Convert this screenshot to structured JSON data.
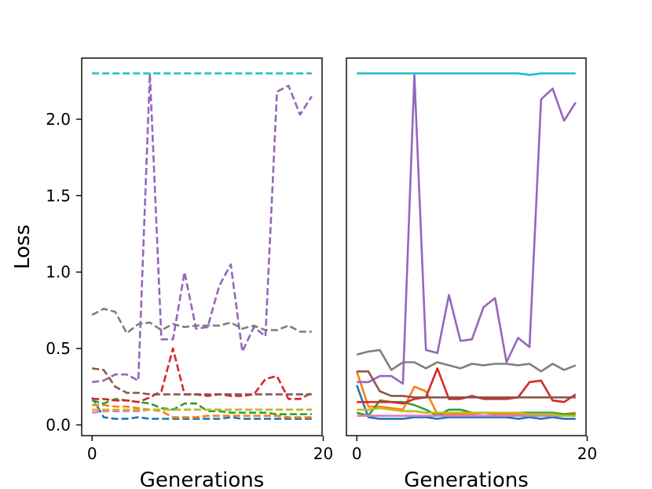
{
  "chart_data": [
    {
      "type": "line",
      "line_style": "dashed",
      "xlabel": "Generations",
      "ylabel": "Loss",
      "xlim": [
        -0.9,
        19.9
      ],
      "ylim": [
        -0.07,
        2.4
      ],
      "xticks": [
        0,
        20
      ],
      "yticks": [
        0.0,
        0.5,
        1.0,
        1.5,
        2.0
      ],
      "x": [
        0,
        1,
        2,
        3,
        4,
        5,
        6,
        7,
        8,
        9,
        10,
        11,
        12,
        13,
        14,
        15,
        16,
        17,
        18,
        19
      ],
      "series": [
        {
          "name": "blue",
          "color": "#1f77b4",
          "values": [
            0.18,
            0.05,
            0.04,
            0.04,
            0.05,
            0.04,
            0.04,
            0.04,
            0.04,
            0.04,
            0.04,
            0.04,
            0.05,
            0.04,
            0.04,
            0.04,
            0.04,
            0.04,
            0.04,
            0.04
          ]
        },
        {
          "name": "orange",
          "color": "#ff7f0e",
          "values": [
            0.13,
            0.13,
            0.12,
            0.12,
            0.11,
            0.1,
            0.09,
            0.05,
            0.05,
            0.05,
            0.06,
            0.06,
            0.06,
            0.06,
            0.06,
            0.06,
            0.06,
            0.05,
            0.05,
            0.05
          ]
        },
        {
          "name": "green",
          "color": "#2ca02c",
          "values": [
            0.16,
            0.14,
            0.17,
            0.16,
            0.15,
            0.14,
            0.11,
            0.1,
            0.14,
            0.14,
            0.09,
            0.09,
            0.08,
            0.08,
            0.08,
            0.08,
            0.07,
            0.07,
            0.07,
            0.07
          ]
        },
        {
          "name": "red",
          "color": "#d62728",
          "values": [
            0.17,
            0.17,
            0.16,
            0.16,
            0.15,
            0.18,
            0.22,
            0.5,
            0.2,
            0.2,
            0.19,
            0.2,
            0.19,
            0.19,
            0.2,
            0.3,
            0.32,
            0.17,
            0.17,
            0.21
          ]
        },
        {
          "name": "purple",
          "color": "#9467bd",
          "values": [
            0.28,
            0.29,
            0.33,
            0.33,
            0.29,
            2.3,
            0.56,
            0.56,
            1.0,
            0.63,
            0.64,
            0.91,
            1.05,
            0.48,
            0.64,
            0.58,
            2.18,
            2.22,
            2.03,
            2.15
          ]
        },
        {
          "name": "brown",
          "color": "#8c564b",
          "values": [
            0.37,
            0.36,
            0.25,
            0.21,
            0.21,
            0.2,
            0.2,
            0.2,
            0.2,
            0.2,
            0.2,
            0.2,
            0.2,
            0.2,
            0.2,
            0.2,
            0.2,
            0.2,
            0.2,
            0.2
          ]
        },
        {
          "name": "pink",
          "color": "#e377c2",
          "values": [
            0.08,
            0.09,
            0.09,
            0.09,
            0.09,
            0.1,
            0.1,
            0.1,
            0.1,
            0.1,
            0.1,
            0.1,
            0.1,
            0.1,
            0.1,
            0.1,
            0.1,
            0.1,
            0.1,
            0.1
          ]
        },
        {
          "name": "gray",
          "color": "#7f7f7f",
          "values": [
            0.72,
            0.76,
            0.74,
            0.6,
            0.66,
            0.67,
            0.62,
            0.66,
            0.64,
            0.65,
            0.65,
            0.65,
            0.67,
            0.63,
            0.65,
            0.62,
            0.62,
            0.65,
            0.61,
            0.61
          ]
        },
        {
          "name": "olive",
          "color": "#bcbd22",
          "values": [
            0.1,
            0.1,
            0.1,
            0.1,
            0.1,
            0.1,
            0.1,
            0.1,
            0.1,
            0.1,
            0.1,
            0.1,
            0.1,
            0.1,
            0.1,
            0.1,
            0.1,
            0.1,
            0.1,
            0.1
          ]
        },
        {
          "name": "cyan",
          "color": "#17becf",
          "values": [
            2.3,
            2.3,
            2.3,
            2.3,
            2.3,
            2.3,
            2.3,
            2.3,
            2.3,
            2.3,
            2.3,
            2.3,
            2.3,
            2.3,
            2.3,
            2.3,
            2.3,
            2.3,
            2.3,
            2.3
          ]
        }
      ]
    },
    {
      "type": "line",
      "line_style": "solid",
      "xlabel": "Generations",
      "ylabel": "",
      "xlim": [
        -0.9,
        19.9
      ],
      "ylim": [
        -0.07,
        2.4
      ],
      "xticks": [
        0,
        20
      ],
      "yticks": [],
      "x": [
        0,
        1,
        2,
        3,
        4,
        5,
        6,
        7,
        8,
        9,
        10,
        11,
        12,
        13,
        14,
        15,
        16,
        17,
        18,
        19
      ],
      "series": [
        {
          "name": "blue",
          "color": "#1f77b4",
          "values": [
            0.26,
            0.05,
            0.04,
            0.04,
            0.04,
            0.05,
            0.05,
            0.04,
            0.05,
            0.05,
            0.05,
            0.05,
            0.05,
            0.05,
            0.04,
            0.05,
            0.04,
            0.05,
            0.04,
            0.04
          ]
        },
        {
          "name": "orange",
          "color": "#ff7f0e",
          "values": [
            0.35,
            0.12,
            0.12,
            0.11,
            0.1,
            0.25,
            0.22,
            0.07,
            0.07,
            0.07,
            0.07,
            0.08,
            0.07,
            0.07,
            0.07,
            0.07,
            0.07,
            0.07,
            0.07,
            0.08
          ]
        },
        {
          "name": "green",
          "color": "#2ca02c",
          "values": [
            0.08,
            0.06,
            0.16,
            0.15,
            0.15,
            0.13,
            0.1,
            0.06,
            0.1,
            0.1,
            0.08,
            0.08,
            0.08,
            0.08,
            0.08,
            0.08,
            0.08,
            0.08,
            0.07,
            0.07
          ]
        },
        {
          "name": "red",
          "color": "#d62728",
          "values": [
            0.15,
            0.15,
            0.15,
            0.15,
            0.14,
            0.17,
            0.18,
            0.37,
            0.17,
            0.17,
            0.19,
            0.17,
            0.17,
            0.17,
            0.18,
            0.28,
            0.29,
            0.16,
            0.15,
            0.2
          ]
        },
        {
          "name": "purple",
          "color": "#9467bd",
          "values": [
            0.28,
            0.28,
            0.32,
            0.32,
            0.27,
            2.29,
            0.49,
            0.47,
            0.85,
            0.55,
            0.56,
            0.77,
            0.83,
            0.41,
            0.57,
            0.51,
            2.13,
            2.2,
            1.99,
            2.11
          ]
        },
        {
          "name": "brown",
          "color": "#8c564b",
          "values": [
            0.35,
            0.35,
            0.22,
            0.19,
            0.19,
            0.18,
            0.18,
            0.18,
            0.18,
            0.18,
            0.18,
            0.18,
            0.18,
            0.18,
            0.18,
            0.18,
            0.18,
            0.18,
            0.18,
            0.18
          ]
        },
        {
          "name": "pink",
          "color": "#e377c2",
          "values": [
            0.06,
            0.06,
            0.06,
            0.06,
            0.06,
            0.06,
            0.06,
            0.06,
            0.06,
            0.06,
            0.06,
            0.06,
            0.06,
            0.06,
            0.06,
            0.06,
            0.06,
            0.06,
            0.06,
            0.06
          ]
        },
        {
          "name": "gray",
          "color": "#7f7f7f",
          "values": [
            0.46,
            0.48,
            0.49,
            0.36,
            0.41,
            0.41,
            0.37,
            0.41,
            0.39,
            0.37,
            0.4,
            0.39,
            0.4,
            0.4,
            0.39,
            0.4,
            0.35,
            0.4,
            0.36,
            0.39
          ]
        },
        {
          "name": "olive",
          "color": "#bcbd22",
          "values": [
            0.1,
            0.1,
            0.11,
            0.1,
            0.09,
            0.09,
            0.08,
            0.08,
            0.08,
            0.08,
            0.08,
            0.08,
            0.08,
            0.08,
            0.08,
            0.07,
            0.07,
            0.07,
            0.06,
            0.06
          ]
        },
        {
          "name": "cyan",
          "color": "#17becf",
          "values": [
            2.3,
            2.3,
            2.3,
            2.3,
            2.3,
            2.3,
            2.3,
            2.3,
            2.3,
            2.3,
            2.3,
            2.3,
            2.3,
            2.3,
            2.3,
            2.29,
            2.3,
            2.3,
            2.3,
            2.3
          ]
        }
      ]
    }
  ]
}
